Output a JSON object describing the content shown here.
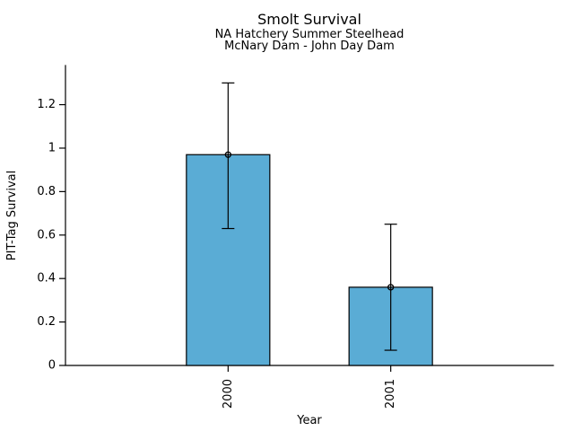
{
  "chart_data": {
    "type": "bar",
    "title": "Smolt Survival",
    "subtitle_lines": [
      "NA Hatchery Summer Steelhead",
      "McNary Dam - John Day Dam"
    ],
    "xlabel": "Year",
    "ylabel": "PIT-Tag Survival",
    "categories": [
      "2000",
      "2001"
    ],
    "values": [
      0.97,
      0.36
    ],
    "error_low": [
      0.63,
      0.07
    ],
    "error_high": [
      1.3,
      0.65
    ],
    "yticks": [
      0,
      0.2,
      0.4,
      0.6,
      0.8,
      1.0,
      1.2
    ],
    "ytick_labels": [
      "0",
      "0.2",
      "0.4",
      "0.6",
      "0.8",
      "1",
      "1.2"
    ],
    "ylim": [
      0,
      1.38
    ],
    "grid": false,
    "marker": "open-circle",
    "bar_fill": "#5AACD5",
    "bar_edge": "#000000",
    "errorbar_color": "#000000",
    "axis_color": "#000000",
    "background": "#FFFFFF"
  }
}
